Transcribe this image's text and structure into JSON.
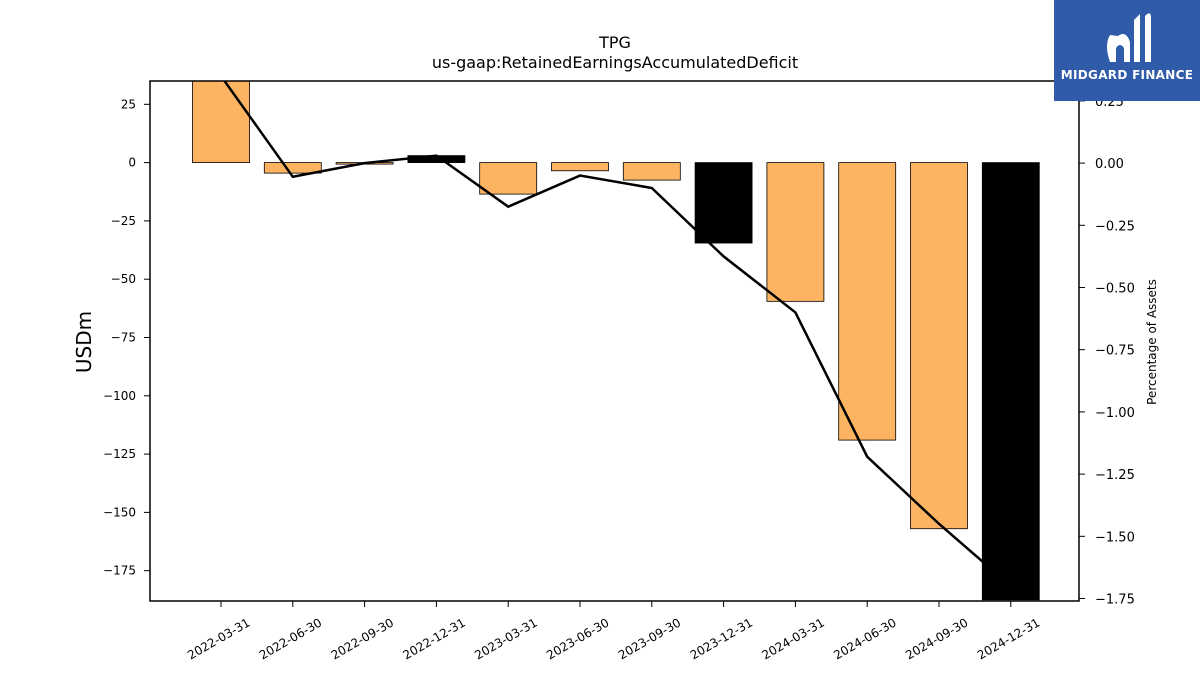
{
  "chart_data": {
    "type": "bar",
    "title": "TPG",
    "subtitle": "us-gaap:RetainedEarningsAccumulatedDeficit",
    "ylabel": "USDm",
    "y2label": "Percentage of Assets",
    "categories": [
      "2022-03-31",
      "2022-06-30",
      "2022-09-30",
      "2022-12-31",
      "2023-03-31",
      "2023-06-30",
      "2023-09-30",
      "2023-12-31",
      "2024-03-31",
      "2024-06-30",
      "2024-09-30",
      "2024-12-31"
    ],
    "values": [
      35.0,
      -4.5,
      -0.5,
      3.0,
      -13.5,
      -3.5,
      -7.5,
      -34.5,
      -59.5,
      -119.0,
      -157.0,
      -187.5
    ],
    "bar_colors": [
      "#fdb462",
      "#fdb462",
      "#fdb462",
      "#000000",
      "#fdb462",
      "#fdb462",
      "#fdb462",
      "#000000",
      "#fdb462",
      "#fdb462",
      "#fdb462",
      "#000000"
    ],
    "line_series": {
      "name": "Percentage of Assets",
      "values": [
        0.35,
        -0.055,
        0.0,
        0.03,
        -0.175,
        -0.05,
        -0.1,
        -0.375,
        -0.6,
        -1.18,
        -1.45,
        -1.7
      ]
    },
    "ylim": [
      -188,
      35
    ],
    "y2lim": [
      -1.76,
      0.33
    ],
    "yticks": [
      25,
      0,
      -25,
      -50,
      -75,
      -100,
      -125,
      -150,
      -175
    ],
    "y2ticks": [
      0.25,
      0.0,
      -0.25,
      -0.5,
      -0.75,
      -1.0,
      -1.25,
      -1.5,
      -1.75
    ],
    "ytick_labels": [
      "25",
      "0",
      "−25",
      "−50",
      "−75",
      "−100",
      "−125",
      "−150",
      "−175"
    ],
    "y2tick_labels": [
      "0.25",
      "0.00",
      "−0.25",
      "−0.50",
      "−0.75",
      "−1.00",
      "−1.25",
      "−1.50",
      "−1.75"
    ],
    "grid": false,
    "bar_color": "#fdb462",
    "highlight_color": "#000000",
    "line_color": "#000000"
  },
  "logo": {
    "text": "MIDGARD FINANCE",
    "background": "#2f5ba8"
  }
}
